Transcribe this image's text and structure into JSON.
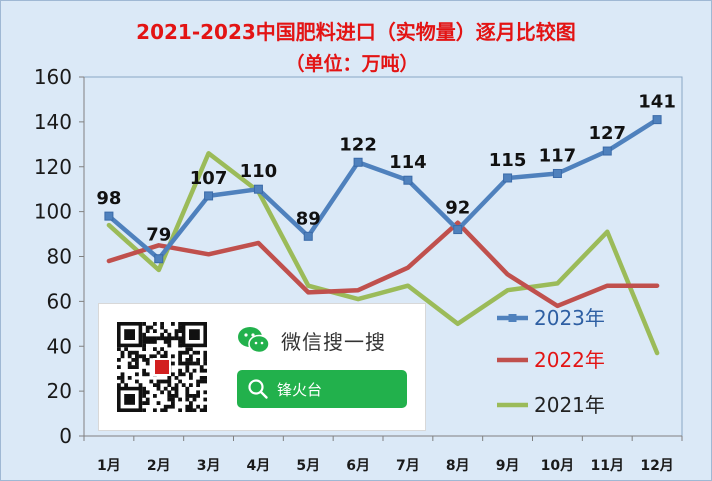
{
  "chart_data": {
    "type": "line",
    "title": "2021-2023中国肥料进口（实物量）逐月比较图",
    "subtitle": "（单位：万吨）",
    "categories": [
      "1月",
      "2月",
      "3月",
      "4月",
      "5月",
      "6月",
      "7月",
      "8月",
      "9月",
      "10月",
      "11月",
      "12月"
    ],
    "ylim": [
      0,
      160
    ],
    "yticks": [
      0,
      20,
      40,
      60,
      80,
      100,
      120,
      140,
      160
    ],
    "grid": false,
    "legend_position": "right",
    "series": [
      {
        "name": "2023年",
        "color": "#4f81bd",
        "legend_color": "#2e5fa3",
        "marker": "square",
        "values": [
          98,
          79,
          107,
          110,
          89,
          122,
          114,
          92,
          115,
          117,
          127,
          141
        ],
        "data_labels": [
          "98",
          "79",
          "107",
          "110",
          "89",
          "122",
          "114",
          "92",
          "115",
          "117",
          "127",
          "141"
        ]
      },
      {
        "name": "2022年",
        "color": "#c0504d",
        "legend_color": "#e31414",
        "marker": "none",
        "values": [
          78,
          85,
          81,
          86,
          64,
          65,
          75,
          95,
          72,
          58,
          67,
          67
        ]
      },
      {
        "name": "2021年",
        "color": "#9bbb59",
        "legend_color": "#222222",
        "marker": "none",
        "values": [
          94,
          74,
          126,
          109,
          67,
          61,
          67,
          50,
          65,
          68,
          91,
          37
        ]
      }
    ]
  },
  "watermark": {
    "search_title": "微信搜一搜",
    "search_keyword": "锋火台",
    "icons": [
      "qr-code",
      "wechat-icon",
      "search-icon"
    ],
    "accent_color": "#22b14c"
  }
}
